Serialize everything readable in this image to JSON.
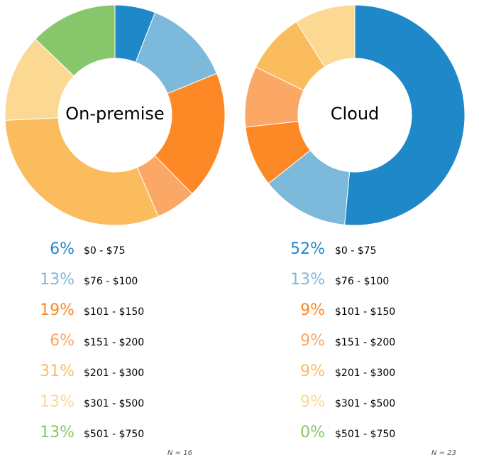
{
  "chart_data": [
    {
      "type": "pie",
      "center_label": "On-premise",
      "categories": [
        "$0 - $75",
        "$76 - $100",
        "$101 - $150",
        "$151 - $200",
        "$201 - $300",
        "$301 - $500",
        "$501 - $750"
      ],
      "values": [
        6,
        13,
        19,
        6,
        31,
        13,
        13
      ],
      "value_labels": [
        "6%",
        "13%",
        "19%",
        "6%",
        "31%",
        "13%",
        "13%"
      ],
      "colors": [
        "#1f88c9",
        "#7db9db",
        "#fd8826",
        "#fba766",
        "#fbbc5e",
        "#fbd993",
        "#88c66b"
      ],
      "note": "N = 16"
    },
    {
      "type": "pie",
      "center_label": "Cloud",
      "categories": [
        "$0 - $75",
        "$76 - $100",
        "$101 - $150",
        "$151 - $200",
        "$201 - $300",
        "$301 - $500",
        "$501 - $750"
      ],
      "values": [
        52,
        13,
        9,
        9,
        9,
        9,
        0
      ],
      "value_labels": [
        "52%",
        "13%",
        "9%",
        "9%",
        "9%",
        "9%",
        "0%"
      ],
      "colors": [
        "#1f88c9",
        "#7db9db",
        "#fd8826",
        "#fba766",
        "#fbbc5e",
        "#fbd993",
        "#88c66b"
      ],
      "note": "N = 23"
    }
  ]
}
